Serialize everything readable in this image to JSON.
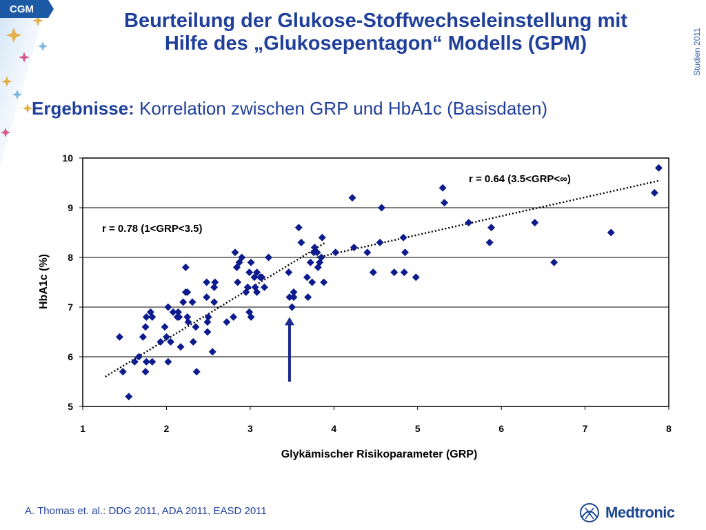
{
  "badge": "CGM",
  "side_label": "Studien 2011",
  "title_line1": "Beurteilung der Glukose-Stoffwechseleinstellung mit",
  "title_line2": "Hilfe des „Glukosepentagon“ Modells (GPM)",
  "subtitle_bold": "Ergebnisse:",
  "subtitle_rest": " Korrelation zwischen GRP und HbA1c (Basisdaten)",
  "footer": "A. Thomas et. al.: DDG 2011, ADA  2011, EASD 2011",
  "logo_text": "Medtronic",
  "colors": {
    "title": "#1f3f9a",
    "points": "#0d1b8c",
    "badge": "#1d5aa6"
  },
  "chart_data": {
    "type": "scatter",
    "xlabel": "Glykämischer Risikoparameter (GRP)",
    "ylabel": "HbA1c (%)",
    "xlim": [
      1,
      8
    ],
    "ylim": [
      5,
      10
    ],
    "x_ticks": [
      1,
      2,
      3,
      4,
      5,
      6,
      7,
      8
    ],
    "y_ticks": [
      5,
      6,
      7,
      8,
      9,
      10
    ],
    "grid": "horizontal",
    "points": [
      [
        1.44,
        6.4
      ],
      [
        1.48,
        5.7
      ],
      [
        1.55,
        5.2
      ],
      [
        1.62,
        5.9
      ],
      [
        1.67,
        6.0
      ],
      [
        1.72,
        6.4
      ],
      [
        1.75,
        5.7
      ],
      [
        1.76,
        5.9
      ],
      [
        1.75,
        6.6
      ],
      [
        1.76,
        6.8
      ],
      [
        1.83,
        5.9
      ],
      [
        1.81,
        6.9
      ],
      [
        1.83,
        6.8
      ],
      [
        1.93,
        6.3
      ],
      [
        1.98,
        6.6
      ],
      [
        2.0,
        6.4
      ],
      [
        2.02,
        5.9
      ],
      [
        2.02,
        7.0
      ],
      [
        2.05,
        6.3
      ],
      [
        2.08,
        6.9
      ],
      [
        2.13,
        6.8
      ],
      [
        2.14,
        6.9
      ],
      [
        2.15,
        6.8
      ],
      [
        2.17,
        6.2
      ],
      [
        2.2,
        7.1
      ],
      [
        2.23,
        7.8
      ],
      [
        2.23,
        7.3
      ],
      [
        2.25,
        7.3
      ],
      [
        2.25,
        6.8
      ],
      [
        2.26,
        6.7
      ],
      [
        2.31,
        7.1
      ],
      [
        2.32,
        6.3
      ],
      [
        2.35,
        6.6
      ],
      [
        2.36,
        5.7
      ],
      [
        2.48,
        7.5
      ],
      [
        2.48,
        7.2
      ],
      [
        2.49,
        6.5
      ],
      [
        2.49,
        6.7
      ],
      [
        2.5,
        6.8
      ],
      [
        2.55,
        6.1
      ],
      [
        2.57,
        7.1
      ],
      [
        2.57,
        7.4
      ],
      [
        2.58,
        7.5
      ],
      [
        2.72,
        6.7
      ],
      [
        2.8,
        6.8
      ],
      [
        2.82,
        8.1
      ],
      [
        2.84,
        7.8
      ],
      [
        2.85,
        7.5
      ],
      [
        2.87,
        7.9
      ],
      [
        2.9,
        8.0
      ],
      [
        2.95,
        7.3
      ],
      [
        2.97,
        7.4
      ],
      [
        2.99,
        7.7
      ],
      [
        2.99,
        6.9
      ],
      [
        3.01,
        7.9
      ],
      [
        3.01,
        6.8
      ],
      [
        3.05,
        7.6
      ],
      [
        3.06,
        7.4
      ],
      [
        3.08,
        7.7
      ],
      [
        3.08,
        7.3
      ],
      [
        3.12,
        7.6
      ],
      [
        3.14,
        7.6
      ],
      [
        3.17,
        7.4
      ],
      [
        3.22,
        8.0
      ],
      [
        3.46,
        7.7
      ],
      [
        3.47,
        7.2
      ],
      [
        3.5,
        7.0
      ],
      [
        3.52,
        7.2
      ],
      [
        3.52,
        7.3
      ],
      [
        3.58,
        8.6
      ],
      [
        3.61,
        8.3
      ],
      [
        3.68,
        7.6
      ],
      [
        3.69,
        7.2
      ],
      [
        3.72,
        7.9
      ],
      [
        3.74,
        7.5
      ],
      [
        3.76,
        8.1
      ],
      [
        3.77,
        8.2
      ],
      [
        3.8,
        8.1
      ],
      [
        3.81,
        7.8
      ],
      [
        3.83,
        7.9
      ],
      [
        3.85,
        8.0
      ],
      [
        3.86,
        8.4
      ],
      [
        3.88,
        7.5
      ],
      [
        4.02,
        8.1
      ],
      [
        4.22,
        9.2
      ],
      [
        4.24,
        8.2
      ],
      [
        4.4,
        8.1
      ],
      [
        4.47,
        7.7
      ],
      [
        4.55,
        8.3
      ],
      [
        4.57,
        9.0
      ],
      [
        4.72,
        7.7
      ],
      [
        4.83,
        8.4
      ],
      [
        4.84,
        7.7
      ],
      [
        4.85,
        8.1
      ],
      [
        4.98,
        7.6
      ],
      [
        5.3,
        9.4
      ],
      [
        5.32,
        9.1
      ],
      [
        5.61,
        8.7
      ],
      [
        5.86,
        8.3
      ],
      [
        5.88,
        8.6
      ],
      [
        6.4,
        8.7
      ],
      [
        6.63,
        7.9
      ],
      [
        7.31,
        8.5
      ],
      [
        7.83,
        9.3
      ],
      [
        7.88,
        9.8
      ]
    ],
    "trendlines": [
      {
        "label": "r = 0.78 (1<GRP<3.5)",
        "from": [
          1.27,
          5.6
        ],
        "to": [
          3.9,
          8.3
        ]
      },
      {
        "label": "r = 0.64 (3.5<GRP<∞)",
        "from": [
          3.8,
          8.0
        ],
        "to": [
          7.9,
          9.55
        ]
      }
    ],
    "arrow": {
      "x": 3.47,
      "from_y": 5.5,
      "to_y": 6.8
    }
  }
}
